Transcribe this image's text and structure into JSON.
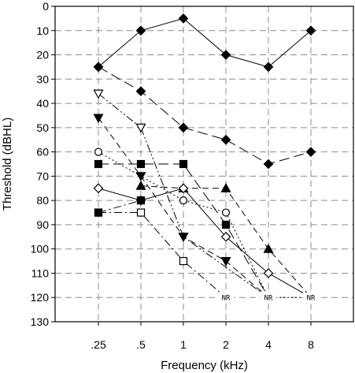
{
  "chart_data": {
    "type": "line",
    "xlabel": "Frequency (kHz)",
    "ylabel": "Threshold (dBHL)",
    "categories": [
      ".25",
      ".5",
      "1",
      "2",
      "4",
      "8"
    ],
    "yticks": [
      0,
      10,
      20,
      30,
      40,
      50,
      60,
      70,
      80,
      90,
      100,
      110,
      120,
      130
    ],
    "ylim": [
      0,
      130
    ],
    "y_inverted": true,
    "grid": true,
    "legend": "none",
    "series": [
      {
        "marker": "filled-diamond",
        "dash": "solid",
        "values": [
          25,
          10,
          5,
          20,
          25,
          10
        ]
      },
      {
        "marker": "filled-diamond",
        "dash": "long-dash",
        "values": [
          25,
          35,
          50,
          55,
          65,
          60
        ]
      },
      {
        "marker": "open-triangle-down",
        "dash": "dash-dot-dot",
        "values": [
          36,
          50,
          95,
          null,
          120,
          null
        ]
      },
      {
        "marker": "filled-triangle-down",
        "dash": "dash",
        "values": [
          46,
          70,
          95,
          105,
          120,
          null
        ]
      },
      {
        "marker": "open-circle",
        "dash": "dot",
        "values": [
          60,
          null,
          80,
          85,
          120,
          120
        ]
      },
      {
        "marker": "filled-square",
        "dash": "long-dash",
        "values": [
          65,
          65,
          65,
          90,
          120,
          null
        ]
      },
      {
        "marker": "filled-triangle-up",
        "dash": "dash",
        "values": [
          null,
          74,
          75,
          75,
          100,
          120
        ]
      },
      {
        "marker": "open-diamond",
        "dash": "solid",
        "values": [
          75,
          80,
          75,
          95,
          110,
          120
        ]
      },
      {
        "marker": "open-square",
        "dash": "dash-dot",
        "values": [
          85,
          85,
          105,
          120,
          null,
          null
        ]
      },
      {
        "marker": "filled-square",
        "dash": "dash-dot",
        "values": [
          85,
          80,
          null,
          null,
          null,
          null
        ]
      }
    ],
    "annotations": [
      {
        "text": "NR",
        "x": "2",
        "y": 120
      },
      {
        "text": "NR",
        "x": "4",
        "y": 120
      },
      {
        "text": "NR",
        "x": "8",
        "y": 120
      }
    ]
  }
}
